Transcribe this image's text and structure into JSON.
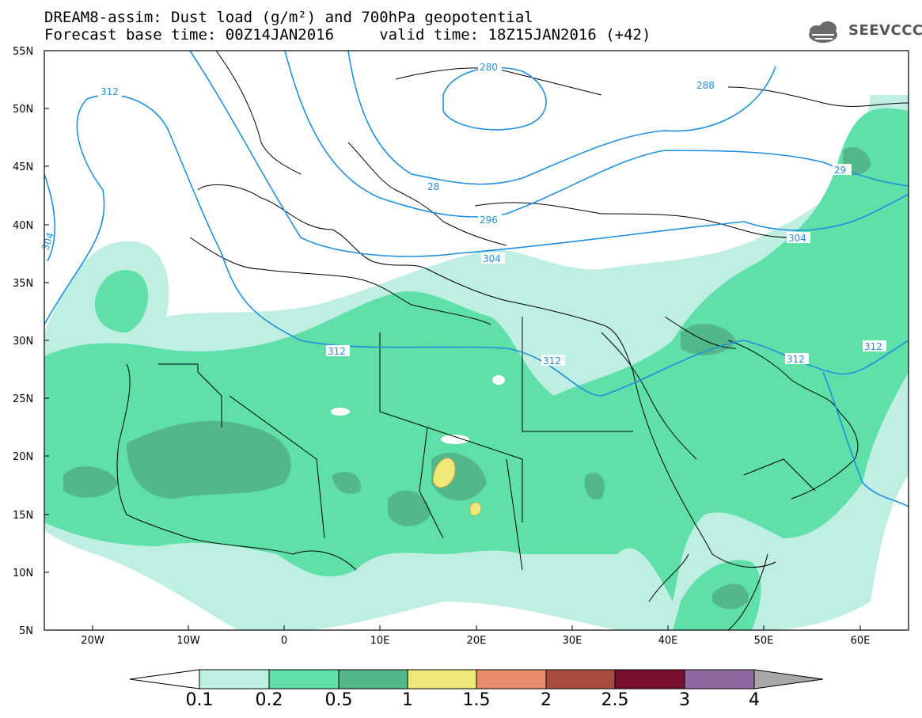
{
  "header": {
    "line1": "DREAM8-assim: Dust load (g/m²) and 700hPa geopotential",
    "line2": "Forecast base time: 00Z14JAN2016     valid time: 18Z15JAN2016 (+42)"
  },
  "logo": {
    "text": "SEEVCCC",
    "icon": "cloud-icon",
    "color": "#555555"
  },
  "axes": {
    "lat_labels": [
      "55N",
      "50N",
      "45N",
      "40N",
      "35N",
      "30N",
      "25N",
      "20N",
      "15N",
      "10N",
      "5N"
    ],
    "lon_labels": [
      "20W",
      "10W",
      "0",
      "10E",
      "20E",
      "30E",
      "40E",
      "50E",
      "60E"
    ]
  },
  "contours": {
    "color": "#1f8fe0",
    "labels": [
      "312",
      "280",
      "288",
      "28",
      "296",
      "304",
      "312",
      "312",
      "304",
      "312",
      "312",
      "29",
      "304"
    ]
  },
  "colorbar": {
    "labels": [
      "0.1",
      "0.2",
      "0.5",
      "1",
      "1.5",
      "2",
      "2.5",
      "3",
      "4"
    ],
    "colors": [
      "#bfeee3",
      "#5ee0a8",
      "#53b889",
      "#f0e878",
      "#e88b6a",
      "#a84d3e",
      "#7a0e2e",
      "#8e68a0",
      "#a8a8a8"
    ]
  },
  "colors": {
    "dust_light": "#bfeee3",
    "dust_mid": "#5ee0a8",
    "dust_dark": "#53b889",
    "dust_yellow": "#f0e878",
    "coast": "#000000"
  }
}
